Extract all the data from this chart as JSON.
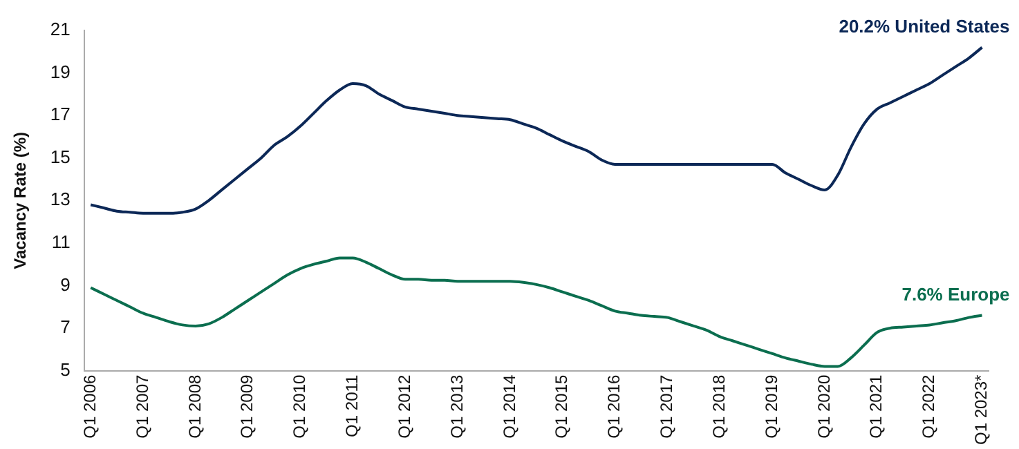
{
  "chart_data": {
    "type": "line",
    "ylabel": "Vacancy Rate (%)",
    "categories": [
      "Q1 2006",
      null,
      null,
      null,
      "Q1 2007",
      null,
      null,
      null,
      "Q1 2008",
      null,
      null,
      null,
      "Q1 2009",
      null,
      null,
      null,
      "Q1 2010",
      null,
      null,
      null,
      "Q1 2011",
      null,
      null,
      null,
      "Q1 2012",
      null,
      null,
      null,
      "Q1 2013",
      null,
      null,
      null,
      "Q1 2014",
      null,
      null,
      null,
      "Q1 2015",
      null,
      null,
      null,
      "Q1 2016",
      null,
      null,
      null,
      "Q1 2017",
      null,
      null,
      null,
      "Q1 2018",
      null,
      null,
      null,
      "Q1 2019",
      null,
      null,
      null,
      "Q1 2020",
      null,
      null,
      null,
      "Q1 2021",
      null,
      null,
      null,
      "Q1 2022",
      null,
      null,
      null,
      "Q1 2023*"
    ],
    "ylim": [
      5,
      21
    ],
    "yticks": [
      5,
      7,
      9,
      11,
      13,
      15,
      17,
      19,
      21
    ],
    "grid": false,
    "legend": false,
    "marker": "none",
    "line_style": "solid",
    "series": [
      {
        "name": "United States",
        "color": "#0c2857",
        "values": [
          12.8,
          12.65,
          12.5,
          12.45,
          12.4,
          12.4,
          12.4,
          12.45,
          12.6,
          13.0,
          13.5,
          14.0,
          14.5,
          15.0,
          15.6,
          16.0,
          16.5,
          17.1,
          17.7,
          18.2,
          18.5,
          18.4,
          18.0,
          17.7,
          17.4,
          17.3,
          17.2,
          17.1,
          17.0,
          16.95,
          16.9,
          16.85,
          16.8,
          16.6,
          16.4,
          16.1,
          15.8,
          15.55,
          15.3,
          14.9,
          14.7,
          14.7,
          14.7,
          14.7,
          14.7,
          14.7,
          14.7,
          14.7,
          14.7,
          14.7,
          14.7,
          14.7,
          14.7,
          14.3,
          14.0,
          13.7,
          13.5,
          14.2,
          15.5,
          16.6,
          17.3,
          17.6,
          17.9,
          18.2,
          18.5,
          18.9,
          19.3,
          19.7,
          20.2
        ],
        "value_labels": [
          null,
          null,
          null,
          null,
          null,
          null,
          null,
          null,
          null,
          null,
          null,
          null,
          null,
          null,
          null,
          null,
          null,
          null,
          null,
          null,
          null,
          null,
          null,
          null,
          null,
          null,
          null,
          null,
          null,
          null,
          null,
          null,
          null,
          null,
          null,
          null,
          null,
          null,
          null,
          null,
          null,
          null,
          null,
          null,
          null,
          null,
          null,
          null,
          null,
          null,
          null,
          null,
          null,
          null,
          null,
          null,
          null,
          null,
          null,
          null,
          null,
          null,
          null,
          null,
          null,
          null,
          null,
          null,
          "20.2%"
        ]
      },
      {
        "name": "Europe",
        "color": "#0b6e4f",
        "values": [
          8.9,
          8.6,
          8.3,
          8.0,
          7.7,
          7.5,
          7.3,
          7.15,
          7.1,
          7.2,
          7.5,
          7.9,
          8.3,
          8.7,
          9.1,
          9.5,
          9.8,
          10.0,
          10.15,
          10.3,
          10.3,
          10.1,
          9.8,
          9.5,
          9.3,
          9.3,
          9.25,
          9.25,
          9.2,
          9.2,
          9.2,
          9.2,
          9.2,
          9.15,
          9.05,
          8.9,
          8.7,
          8.5,
          8.3,
          8.05,
          7.8,
          7.7,
          7.6,
          7.55,
          7.5,
          7.3,
          7.1,
          6.9,
          6.6,
          6.4,
          6.2,
          6.0,
          5.8,
          5.6,
          5.45,
          5.3,
          5.2,
          5.2,
          5.6,
          6.2,
          6.8,
          7.0,
          7.05,
          7.1,
          7.15,
          7.25,
          7.35,
          7.5,
          7.6
        ],
        "value_labels": [
          null,
          null,
          null,
          null,
          null,
          null,
          null,
          null,
          null,
          null,
          null,
          null,
          null,
          null,
          null,
          null,
          null,
          null,
          null,
          null,
          null,
          null,
          null,
          null,
          null,
          null,
          null,
          null,
          null,
          null,
          null,
          null,
          null,
          null,
          null,
          null,
          null,
          null,
          null,
          null,
          null,
          null,
          null,
          null,
          null,
          null,
          null,
          null,
          null,
          null,
          null,
          null,
          null,
          null,
          null,
          null,
          null,
          null,
          null,
          null,
          null,
          null,
          null,
          null,
          null,
          null,
          null,
          null,
          "7.6%"
        ]
      }
    ]
  }
}
